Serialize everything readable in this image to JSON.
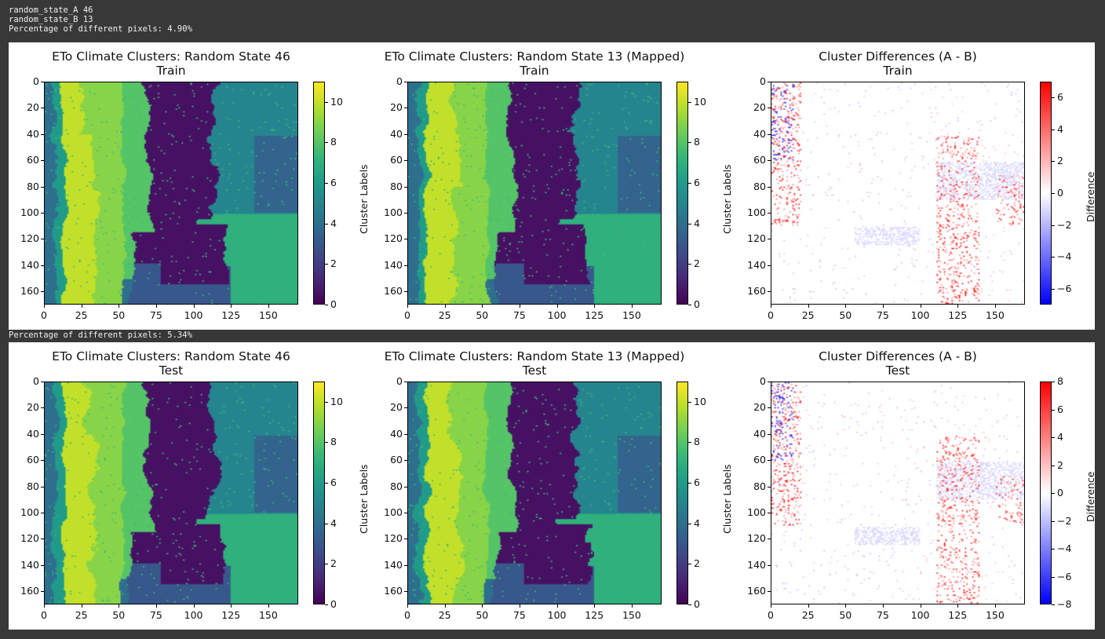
{
  "console": {
    "line1": "random_state_A 46",
    "line2": "random_state_B 13",
    "train_diff": "Percentage of different pixels: 4.90%",
    "test_diff": "Percentage of different pixels: 5.34%"
  },
  "colors": {
    "page_bg": "#383838",
    "figure_bg": "#ffffff",
    "viridis": [
      "#440154",
      "#482878",
      "#3e4989",
      "#31688e",
      "#26828e",
      "#1f9e89",
      "#35b779",
      "#6ece58",
      "#b5de2b",
      "#fde725"
    ],
    "bwr": [
      "#0000ff",
      "#ffffff",
      "#ff0000"
    ]
  },
  "chart_data": [
    {
      "type": "heatmap",
      "title": "ETo Climate Clusters: Random State 46",
      "subtitle": "Train",
      "xlim": [
        0,
        170
      ],
      "ylim": [
        170,
        0
      ],
      "x_ticks": [
        0,
        25,
        50,
        75,
        100,
        125,
        150
      ],
      "y_ticks": [
        0,
        20,
        40,
        60,
        80,
        100,
        120,
        140,
        160
      ],
      "colorbar": {
        "label": "Cluster Labels",
        "cmap": "viridis",
        "range": [
          0,
          11
        ],
        "ticks": [
          0,
          2,
          4,
          6,
          8,
          10
        ]
      }
    },
    {
      "type": "heatmap",
      "title": "ETo Climate Clusters: Random State 13 (Mapped)",
      "subtitle": "Train",
      "xlim": [
        0,
        170
      ],
      "ylim": [
        170,
        0
      ],
      "x_ticks": [
        0,
        25,
        50,
        75,
        100,
        125,
        150
      ],
      "y_ticks": [
        0,
        20,
        40,
        60,
        80,
        100,
        120,
        140,
        160
      ],
      "colorbar": {
        "label": "Cluster Labels",
        "cmap": "viridis",
        "range": [
          0,
          11
        ],
        "ticks": [
          0,
          2,
          4,
          6,
          8,
          10
        ]
      }
    },
    {
      "type": "heatmap",
      "title": "Cluster Differences (A - B)",
      "subtitle": "Train",
      "xlim": [
        0,
        170
      ],
      "ylim": [
        170,
        0
      ],
      "x_ticks": [
        0,
        25,
        50,
        75,
        100,
        125,
        150
      ],
      "y_ticks": [
        0,
        20,
        40,
        60,
        80,
        100,
        120,
        140,
        160
      ],
      "colorbar": {
        "label": "Difference",
        "cmap": "bwr",
        "range": [
          -7,
          7
        ],
        "ticks": [
          -6,
          -4,
          -2,
          0,
          2,
          4,
          6
        ]
      }
    },
    {
      "type": "heatmap",
      "title": "ETo Climate Clusters: Random State 46",
      "subtitle": "Test",
      "xlim": [
        0,
        170
      ],
      "ylim": [
        170,
        0
      ],
      "x_ticks": [
        0,
        25,
        50,
        75,
        100,
        125,
        150
      ],
      "y_ticks": [
        0,
        20,
        40,
        60,
        80,
        100,
        120,
        140,
        160
      ],
      "colorbar": {
        "label": "Cluster Labels",
        "cmap": "viridis",
        "range": [
          0,
          11
        ],
        "ticks": [
          0,
          2,
          4,
          6,
          8,
          10
        ]
      }
    },
    {
      "type": "heatmap",
      "title": "ETo Climate Clusters: Random State 13 (Mapped)",
      "subtitle": "Test",
      "xlim": [
        0,
        170
      ],
      "ylim": [
        170,
        0
      ],
      "x_ticks": [
        0,
        25,
        50,
        75,
        100,
        125,
        150
      ],
      "y_ticks": [
        0,
        20,
        40,
        60,
        80,
        100,
        120,
        140,
        160
      ],
      "colorbar": {
        "label": "Cluster Labels",
        "cmap": "viridis",
        "range": [
          0,
          11
        ],
        "ticks": [
          0,
          2,
          4,
          6,
          8,
          10
        ]
      }
    },
    {
      "type": "heatmap",
      "title": "Cluster Differences (A - B)",
      "subtitle": "Test",
      "xlim": [
        0,
        170
      ],
      "ylim": [
        170,
        0
      ],
      "x_ticks": [
        0,
        25,
        50,
        75,
        100,
        125,
        150
      ],
      "y_ticks": [
        0,
        20,
        40,
        60,
        80,
        100,
        120,
        140,
        160
      ],
      "colorbar": {
        "label": "Difference",
        "cmap": "bwr",
        "range": [
          -8,
          8
        ],
        "ticks": [
          -8,
          -6,
          -4,
          -2,
          0,
          2,
          4,
          6,
          8
        ]
      }
    }
  ]
}
